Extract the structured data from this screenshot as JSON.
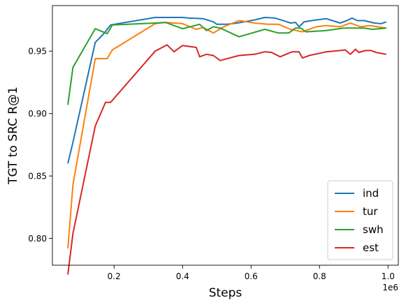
{
  "chart_data": {
    "type": "line",
    "xlabel": "Steps",
    "ylabel": "TGT to SRC R@1",
    "x_offset_label": "1e6",
    "xlim": [
      0.02,
      1.03
    ],
    "ylim": [
      0.7785,
      0.9865
    ],
    "x_ticks": [
      {
        "value": 0.2,
        "label": "0.2"
      },
      {
        "value": 0.4,
        "label": "0.4"
      },
      {
        "value": 0.6,
        "label": "0.6"
      },
      {
        "value": 0.8,
        "label": "0.8"
      },
      {
        "value": 1.0,
        "label": "1.0"
      }
    ],
    "y_ticks": [
      {
        "value": 0.8,
        "label": "0.80"
      },
      {
        "value": 0.85,
        "label": "0.85"
      },
      {
        "value": 0.9,
        "label": "0.90"
      },
      {
        "value": 0.95,
        "label": "0.95"
      }
    ],
    "grid": false,
    "legend_position": "bottom-right",
    "series": [
      {
        "name": "ind",
        "color": "#1f77b4",
        "points": [
          [
            0.065,
            0.86
          ],
          [
            0.08,
            0.877
          ],
          [
            0.145,
            0.957
          ],
          [
            0.17,
            0.964
          ],
          [
            0.19,
            0.971
          ],
          [
            0.32,
            0.977
          ],
          [
            0.35,
            0.977
          ],
          [
            0.4,
            0.977
          ],
          [
            0.42,
            0.9765
          ],
          [
            0.46,
            0.976
          ],
          [
            0.49,
            0.9735
          ],
          [
            0.5,
            0.9715
          ],
          [
            0.53,
            0.9715
          ],
          [
            0.56,
            0.9725
          ],
          [
            0.61,
            0.975
          ],
          [
            0.64,
            0.977
          ],
          [
            0.67,
            0.9765
          ],
          [
            0.7,
            0.974
          ],
          [
            0.715,
            0.9725
          ],
          [
            0.73,
            0.973
          ],
          [
            0.74,
            0.9695
          ],
          [
            0.755,
            0.9735
          ],
          [
            0.79,
            0.975
          ],
          [
            0.82,
            0.976
          ],
          [
            0.86,
            0.9725
          ],
          [
            0.88,
            0.9745
          ],
          [
            0.895,
            0.9765
          ],
          [
            0.91,
            0.9745
          ],
          [
            0.93,
            0.9745
          ],
          [
            0.96,
            0.9725
          ],
          [
            0.98,
            0.972
          ],
          [
            0.995,
            0.9735
          ]
        ]
      },
      {
        "name": "tur",
        "color": "#ff7f0e",
        "points": [
          [
            0.065,
            0.792
          ],
          [
            0.08,
            0.843
          ],
          [
            0.145,
            0.944
          ],
          [
            0.18,
            0.944
          ],
          [
            0.195,
            0.951
          ],
          [
            0.32,
            0.972
          ],
          [
            0.35,
            0.973
          ],
          [
            0.4,
            0.972
          ],
          [
            0.44,
            0.9675
          ],
          [
            0.46,
            0.969
          ],
          [
            0.49,
            0.9645
          ],
          [
            0.52,
            0.9695
          ],
          [
            0.565,
            0.9745
          ],
          [
            0.61,
            0.9725
          ],
          [
            0.65,
            0.9715
          ],
          [
            0.68,
            0.9715
          ],
          [
            0.715,
            0.9675
          ],
          [
            0.75,
            0.9655
          ],
          [
            0.79,
            0.9695
          ],
          [
            0.82,
            0.9705
          ],
          [
            0.86,
            0.9695
          ],
          [
            0.89,
            0.9725
          ],
          [
            0.92,
            0.9695
          ],
          [
            0.945,
            0.9705
          ],
          [
            0.97,
            0.9695
          ],
          [
            0.995,
            0.9685
          ]
        ]
      },
      {
        "name": "swh",
        "color": "#2ca02c",
        "points": [
          [
            0.065,
            0.907
          ],
          [
            0.08,
            0.937
          ],
          [
            0.145,
            0.968
          ],
          [
            0.18,
            0.964
          ],
          [
            0.195,
            0.971
          ],
          [
            0.32,
            0.9725
          ],
          [
            0.35,
            0.973
          ],
          [
            0.4,
            0.968
          ],
          [
            0.45,
            0.9715
          ],
          [
            0.47,
            0.9665
          ],
          [
            0.49,
            0.9695
          ],
          [
            0.51,
            0.9685
          ],
          [
            0.565,
            0.9615
          ],
          [
            0.64,
            0.9675
          ],
          [
            0.68,
            0.9645
          ],
          [
            0.71,
            0.9645
          ],
          [
            0.73,
            0.9685
          ],
          [
            0.745,
            0.9685
          ],
          [
            0.76,
            0.9655
          ],
          [
            0.82,
            0.9665
          ],
          [
            0.87,
            0.9685
          ],
          [
            0.9,
            0.9685
          ],
          [
            0.93,
            0.9685
          ],
          [
            0.955,
            0.9675
          ],
          [
            0.995,
            0.9685
          ]
        ]
      },
      {
        "name": "est",
        "color": "#d62728",
        "points": [
          [
            0.065,
            0.771
          ],
          [
            0.08,
            0.804
          ],
          [
            0.145,
            0.89
          ],
          [
            0.175,
            0.909
          ],
          [
            0.19,
            0.909
          ],
          [
            0.32,
            0.95
          ],
          [
            0.355,
            0.955
          ],
          [
            0.375,
            0.9495
          ],
          [
            0.4,
            0.9545
          ],
          [
            0.44,
            0.953
          ],
          [
            0.45,
            0.9455
          ],
          [
            0.47,
            0.9475
          ],
          [
            0.49,
            0.9465
          ],
          [
            0.51,
            0.9425
          ],
          [
            0.565,
            0.9465
          ],
          [
            0.61,
            0.9475
          ],
          [
            0.64,
            0.9495
          ],
          [
            0.66,
            0.949
          ],
          [
            0.685,
            0.9455
          ],
          [
            0.72,
            0.9495
          ],
          [
            0.74,
            0.9495
          ],
          [
            0.75,
            0.9445
          ],
          [
            0.77,
            0.9465
          ],
          [
            0.82,
            0.9495
          ],
          [
            0.86,
            0.9505
          ],
          [
            0.875,
            0.951
          ],
          [
            0.89,
            0.9475
          ],
          [
            0.905,
            0.9515
          ],
          [
            0.915,
            0.949
          ],
          [
            0.935,
            0.9505
          ],
          [
            0.95,
            0.9505
          ],
          [
            0.965,
            0.949
          ],
          [
            0.995,
            0.9475
          ]
        ]
      }
    ]
  }
}
